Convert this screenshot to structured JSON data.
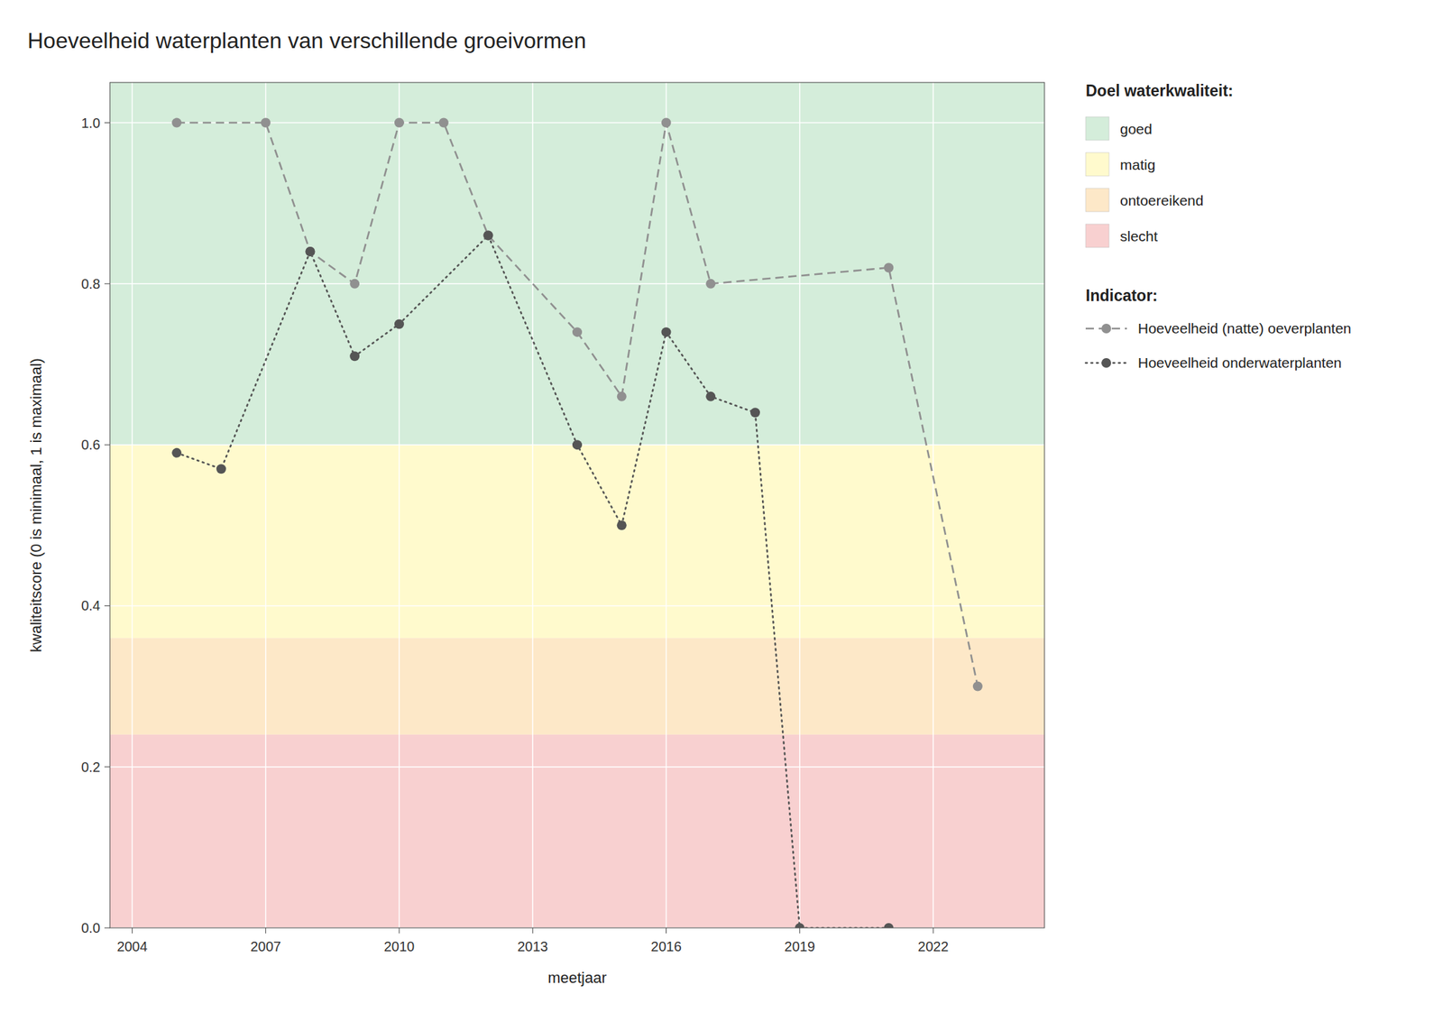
{
  "chart_data": {
    "type": "line",
    "title": "Hoeveelheid waterplanten van verschillende groeivormen",
    "x_label": "meetjaar",
    "y_label": "kwaliteitscore (0 is minimaal, 1 is maximaal)",
    "xlim": [
      2003.5,
      2024.5
    ],
    "ylim": [
      0.0,
      1.05
    ],
    "xticks": [
      2004,
      2007,
      2010,
      2013,
      2016,
      2019,
      2022
    ],
    "yticks": [
      {
        "value": 0.0,
        "label": "0.0"
      },
      0.2,
      0.4,
      0.6,
      0.8,
      {
        "value": 1.0,
        "label": "1.0"
      }
    ],
    "grid": true,
    "legend": "right",
    "zone_legend_title": "Doel waterkwaliteit:",
    "series_legend_title": "Indicator:",
    "zones": [
      {
        "name": "goed",
        "from": 0.6,
        "to": 1.05,
        "color": "#d4edda"
      },
      {
        "name": "matig",
        "from": 0.36,
        "to": 0.6,
        "color": "#fffacd"
      },
      {
        "name": "ontoereikend",
        "from": 0.24,
        "to": 0.36,
        "color": "#fde8c8"
      },
      {
        "name": "slecht",
        "from": 0.0,
        "to": 0.24,
        "color": "#f8d0d0"
      }
    ],
    "series": [
      {
        "name": "Hoeveelheid (natte) oeverplanten",
        "color": "#909090",
        "line_style": "dashed",
        "marker": "circle",
        "x": [
          2005,
          2007,
          2008,
          2009,
          2010,
          2011,
          2012,
          2014,
          2015,
          2016,
          2017,
          2021,
          2023
        ],
        "values": [
          1.0,
          1.0,
          0.84,
          0.8,
          1.0,
          1.0,
          0.86,
          0.74,
          0.66,
          1.0,
          0.8,
          0.82,
          0.3
        ]
      },
      {
        "name": "Hoeveelheid onderwaterplanten",
        "color": "#555555",
        "line_style": "dotted",
        "marker": "circle",
        "x": [
          2005,
          2006,
          2008,
          2009,
          2010,
          2012,
          2014,
          2015,
          2016,
          2017,
          2018,
          2019,
          2021
        ],
        "values": [
          0.59,
          0.57,
          0.84,
          0.71,
          0.75,
          0.86,
          0.6,
          0.5,
          0.74,
          0.66,
          0.64,
          0.0,
          0.0
        ]
      }
    ]
  }
}
